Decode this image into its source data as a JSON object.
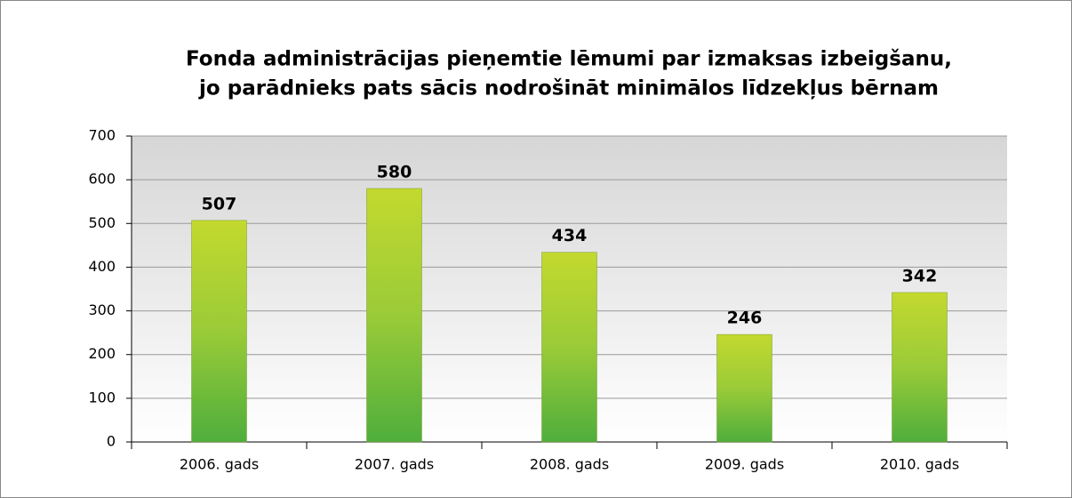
{
  "chart_data": {
    "type": "bar",
    "title": [
      "Fonda administrācijas pieņemtie lēmumi par izmaksas izbeigšanu,",
      "jo parādnieks pats sācis nodrošināt minimālos līdzekļus bērnam"
    ],
    "categories": [
      "2006. gads",
      "2007. gads",
      "2008. gads",
      "2009. gads",
      "2010. gads"
    ],
    "values": [
      507,
      580,
      434,
      246,
      342
    ],
    "color": "#8cc63f",
    "ylim": [
      0,
      700
    ],
    "yticks": [
      0,
      100,
      200,
      300,
      400,
      500,
      600,
      700
    ],
    "grid": true
  }
}
